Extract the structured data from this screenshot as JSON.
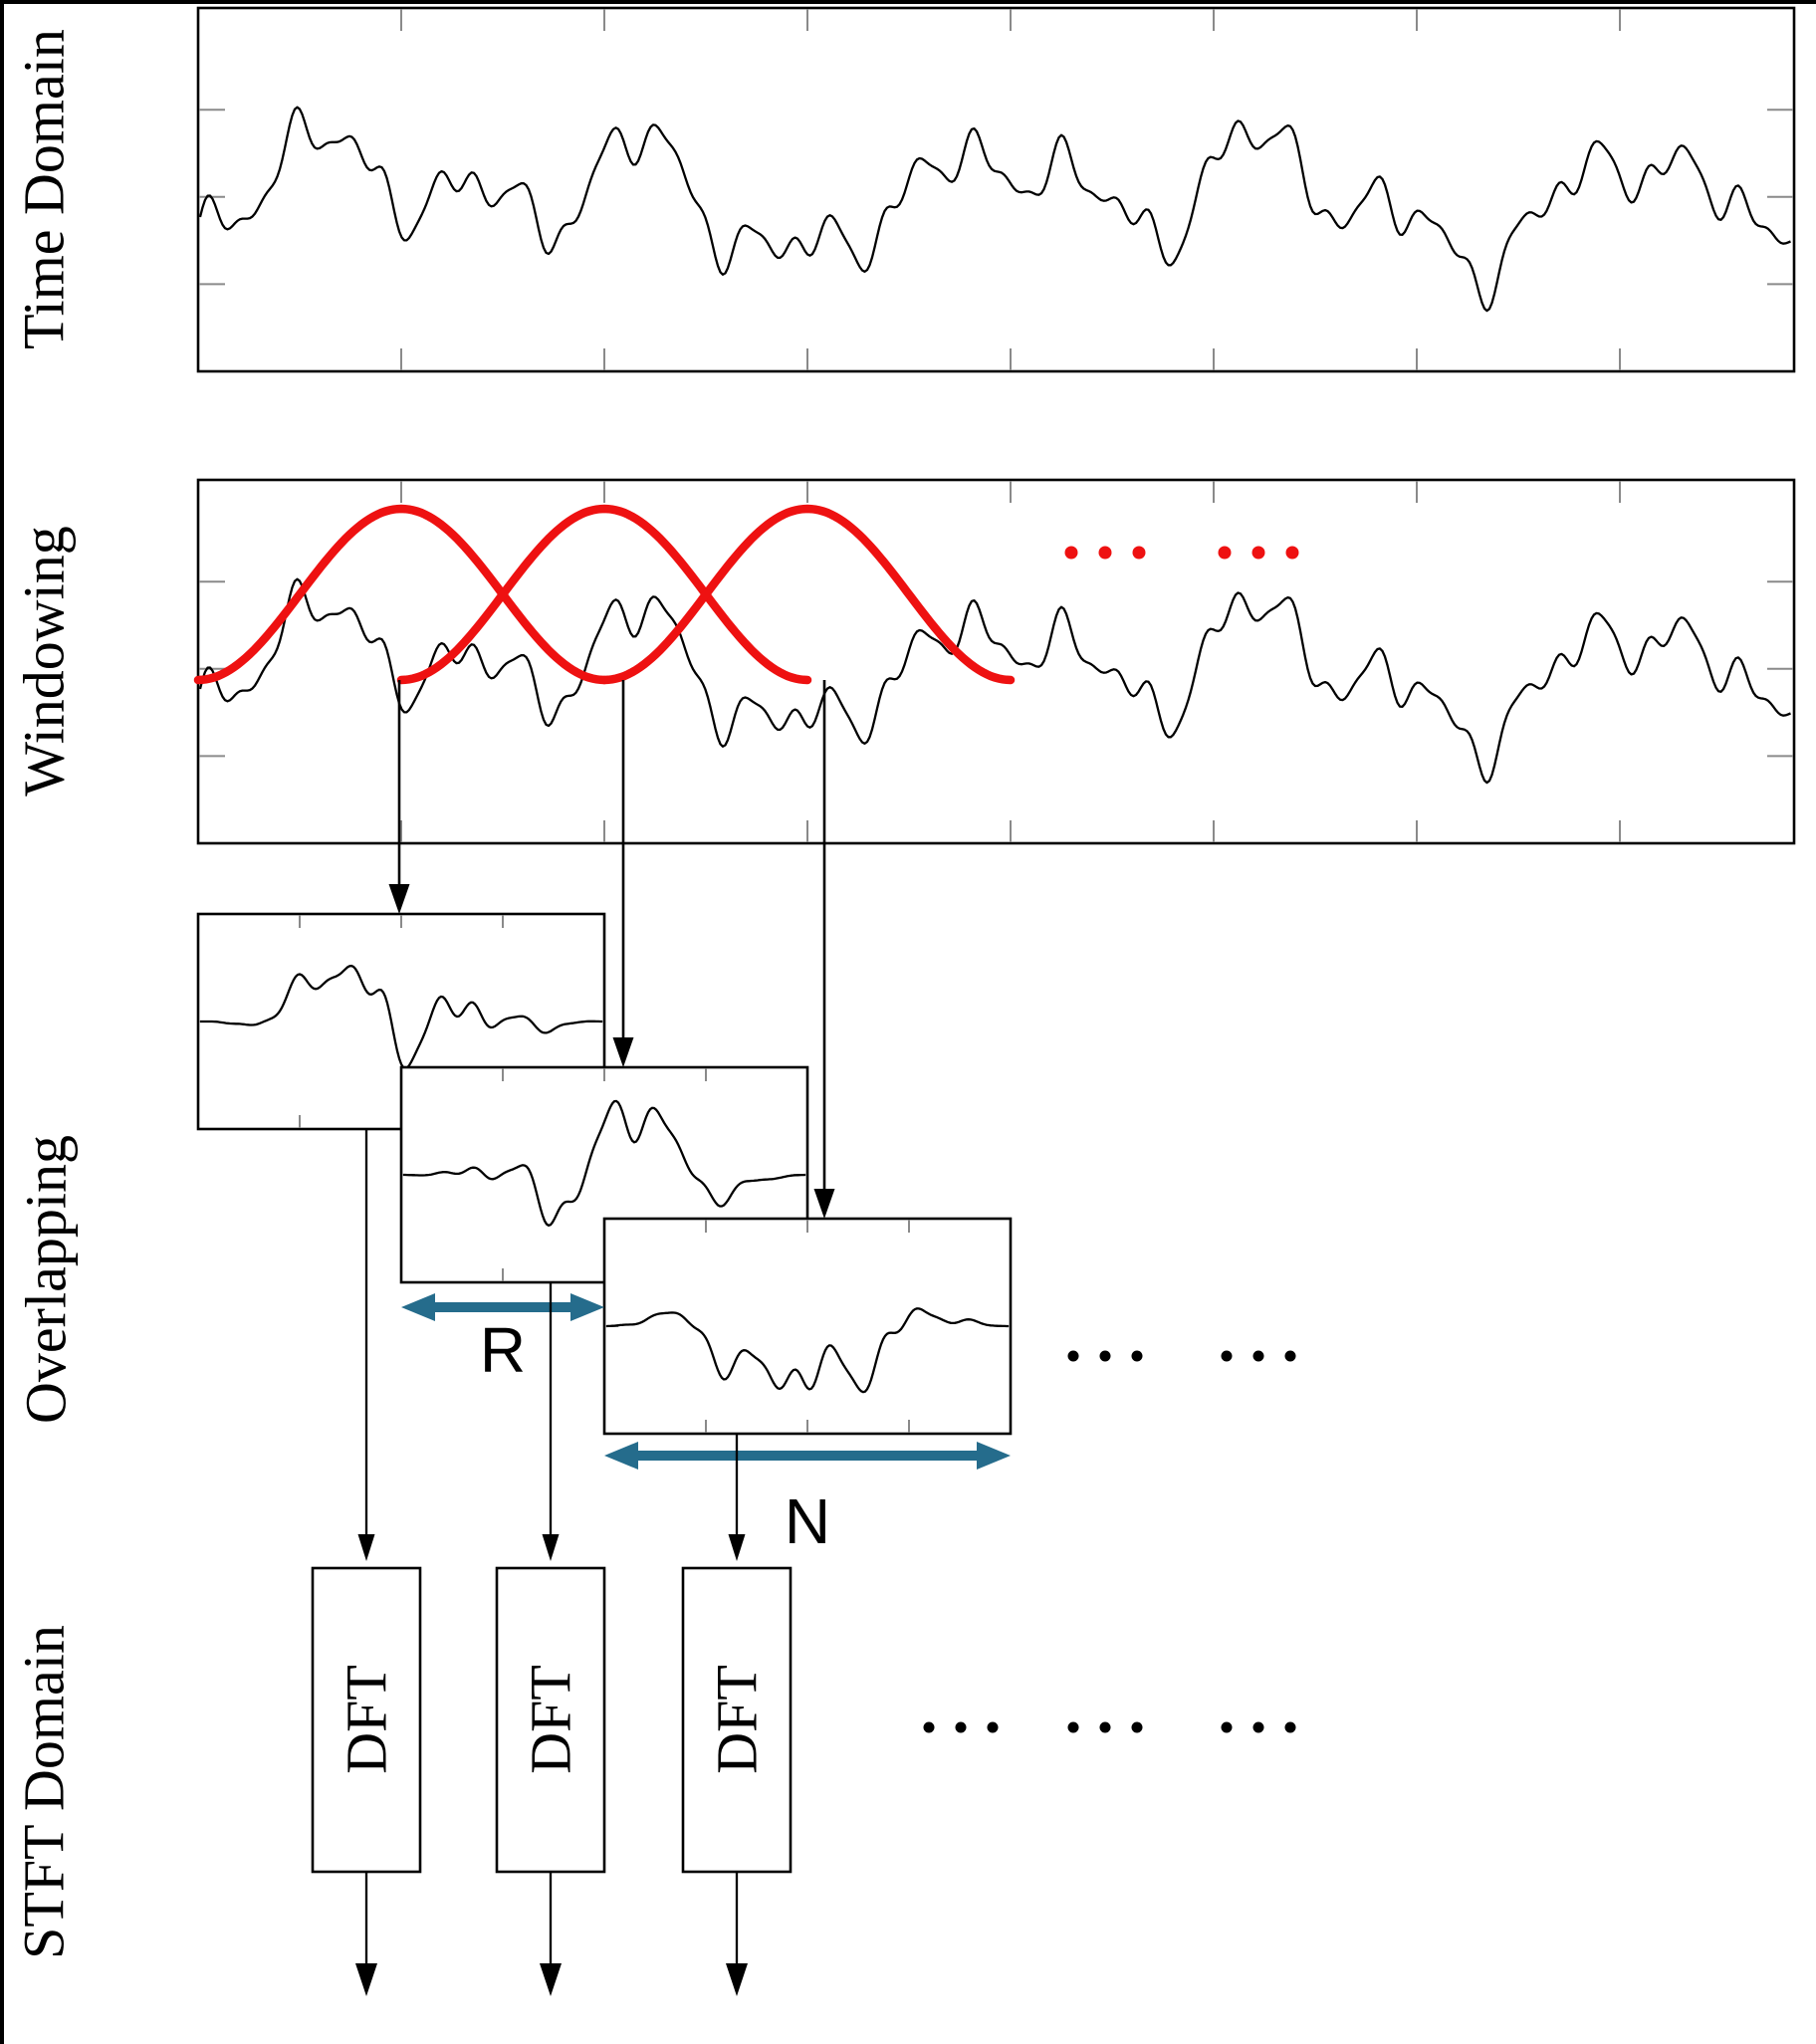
{
  "labels": {
    "time_domain": "Time Domain",
    "windowing": "Windowing",
    "overlapping": "Overlapping",
    "stft_domain": "STFT Domain",
    "hop": "R",
    "frame": "N"
  },
  "dft_blocks": [
    {
      "label": "DFT"
    },
    {
      "label": "DFT"
    },
    {
      "label": "DFT"
    }
  ],
  "colors": {
    "background": "#ffffff",
    "border": "#000000",
    "signal": "#000000",
    "window": "#ee1111",
    "measure": "#256c8c",
    "tick": "#8a8a8a"
  },
  "signal": {
    "components": [
      {
        "a": 0.42,
        "p": 52.0,
        "ph": 1.7
      },
      {
        "a": 0.27,
        "p": 24.5,
        "ph": 0.6
      },
      {
        "a": 0.2,
        "p": 12.3,
        "ph": 2.9
      },
      {
        "a": 0.13,
        "p": 7.2,
        "ph": 4.2
      },
      {
        "a": 0.07,
        "p": 4.7,
        "ph": 1.1
      },
      {
        "a": 0.24,
        "p": 110.0,
        "ph": 3.8
      },
      {
        "a": 0.15,
        "p": 31.0,
        "ph": 5.3
      }
    ]
  },
  "ellipsis": {
    "symbol": "...",
    "red_groups": 2,
    "overlap_groups": 2,
    "stft_groups": 3,
    "dots_per_group": 3
  }
}
